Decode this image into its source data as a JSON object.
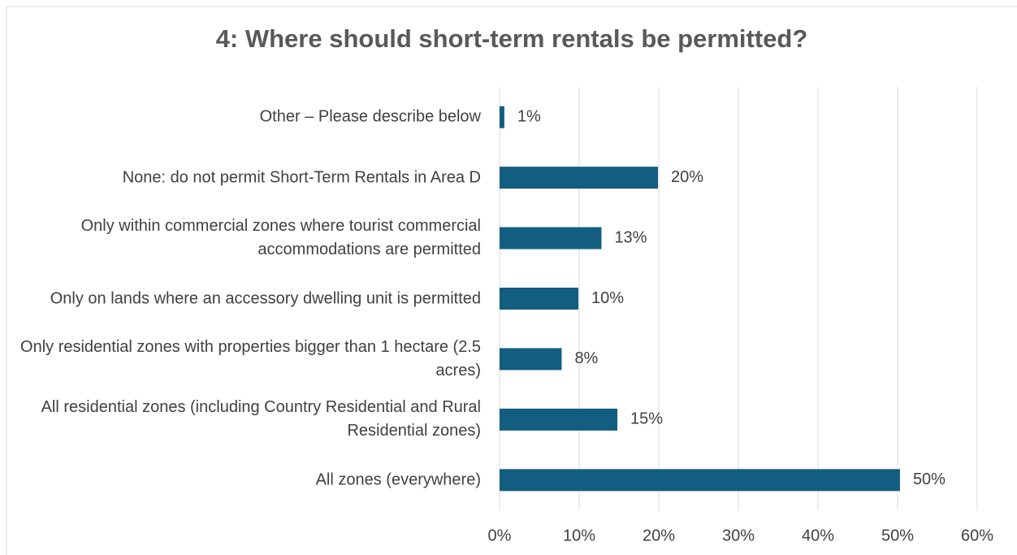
{
  "chart_data": {
    "type": "bar",
    "orientation": "horizontal",
    "title": "4: Where should short-term rentals be permitted?",
    "categories": [
      "Other – Please describe below",
      "None: do not permit Short-Term Rentals in Area D",
      "Only within commercial zones where tourist commercial accommodations are permitted",
      "Only on lands where an accessory dwelling unit is permitted",
      "Only residential zones with properties bigger than 1 hectare (2.5 acres)",
      "All residential zones (including Country Residential and Rural Residential zones)",
      "All zones (everywhere)"
    ],
    "values": [
      0.6,
      19.9,
      12.8,
      9.9,
      7.8,
      14.8,
      50.3
    ],
    "value_labels": [
      "1%",
      "20%",
      "13%",
      "10%",
      "8%",
      "15%",
      "50%"
    ],
    "color": "#135e80",
    "xlim": [
      0,
      60
    ],
    "xticks": [
      {
        "value": 0,
        "label": "0%"
      },
      {
        "value": 10,
        "label": "10%"
      },
      {
        "value": 20,
        "label": "20%"
      },
      {
        "value": 30,
        "label": "30%"
      },
      {
        "value": 40,
        "label": "40%"
      },
      {
        "value": 50,
        "label": "50%"
      },
      {
        "value": 60,
        "label": "60%"
      }
    ],
    "grid": true
  }
}
